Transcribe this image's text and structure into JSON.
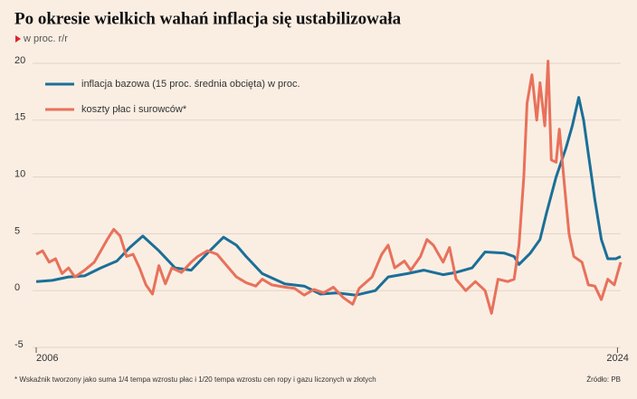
{
  "chart_data": {
    "type": "line",
    "title": "Po okresie wielkich wahań inflacja się ustabilizowała",
    "subtitle": "w proc. r/r",
    "footnote": "* Wskaźnik tworzony jako suma 1/4 tempa wzrostu płac i 1/20 tempa wzrostu cen ropy i gazu liczonych w złotych",
    "source": "Źródło: PB",
    "xlim": [
      2006,
      2024.1
    ],
    "xticks": [
      2006,
      2024
    ],
    "ylim": [
      -5,
      20
    ],
    "yticks": [
      20,
      15,
      10,
      5,
      0,
      -5
    ],
    "grid": true,
    "legend": "upper left",
    "series": [
      {
        "name": "inflacja bazowa (15 proc. średnia obcięta) w proc.",
        "color": "#1b6f98",
        "x": [
          2006.0,
          2006.5,
          2007.0,
          2007.5,
          2008.0,
          2008.5,
          2008.9,
          2009.3,
          2009.8,
          2010.3,
          2010.8,
          2011.3,
          2011.8,
          2012.2,
          2012.5,
          2013.0,
          2013.7,
          2014.3,
          2014.8,
          2015.3,
          2015.9,
          2016.5,
          2016.9,
          2017.5,
          2018.0,
          2018.6,
          2019.0,
          2019.5,
          2019.9,
          2020.5,
          2020.8,
          2020.95,
          2021.3,
          2021.6,
          2021.8,
          2022.1,
          2022.4,
          2022.6,
          2022.8,
          2022.95,
          2023.1,
          2023.3,
          2023.5,
          2023.7,
          2023.95,
          2024.1
        ],
        "values": [
          0.8,
          0.9,
          1.2,
          1.3,
          2.0,
          2.6,
          3.8,
          4.8,
          3.5,
          2.0,
          1.8,
          3.3,
          4.7,
          4.0,
          3.0,
          1.5,
          0.6,
          0.4,
          -0.3,
          -0.2,
          -0.4,
          0.0,
          1.2,
          1.5,
          1.8,
          1.4,
          1.6,
          2.0,
          3.4,
          3.3,
          3.0,
          2.3,
          3.3,
          4.5,
          6.8,
          10.0,
          12.5,
          14.5,
          17.0,
          15.0,
          12.0,
          8.0,
          4.5,
          2.8,
          2.8,
          3.0
        ]
      },
      {
        "name": "koszty płac i surowców*",
        "color": "#e8715b",
        "x": [
          2006.0,
          2006.2,
          2006.4,
          2006.6,
          2006.8,
          2007.0,
          2007.2,
          2007.5,
          2007.8,
          2008.0,
          2008.2,
          2008.4,
          2008.6,
          2008.8,
          2009.0,
          2009.2,
          2009.4,
          2009.6,
          2009.8,
          2010.0,
          2010.2,
          2010.5,
          2010.8,
          2011.0,
          2011.3,
          2011.6,
          2011.9,
          2012.2,
          2012.5,
          2012.8,
          2013.0,
          2013.3,
          2013.7,
          2014.0,
          2014.3,
          2014.6,
          2014.9,
          2015.2,
          2015.5,
          2015.8,
          2016.0,
          2016.4,
          2016.7,
          2016.9,
          2017.1,
          2017.4,
          2017.6,
          2017.9,
          2018.1,
          2018.3,
          2018.6,
          2018.8,
          2019.0,
          2019.3,
          2019.6,
          2019.9,
          2020.1,
          2020.3,
          2020.6,
          2020.8,
          2020.95,
          2021.1,
          2021.2,
          2021.35,
          2021.5,
          2021.6,
          2021.75,
          2021.85,
          2021.95,
          2022.1,
          2022.2,
          2022.4,
          2022.5,
          2022.65,
          2022.9,
          2023.1,
          2023.3,
          2023.5,
          2023.7,
          2023.9,
          2024.0,
          2024.1
        ],
        "values": [
          3.2,
          3.5,
          2.5,
          2.8,
          1.5,
          2.0,
          1.2,
          1.8,
          2.5,
          3.5,
          4.5,
          5.4,
          4.8,
          3.0,
          3.2,
          2.0,
          0.5,
          -0.3,
          2.2,
          0.6,
          2.0,
          1.6,
          2.5,
          3.0,
          3.5,
          3.2,
          2.2,
          1.2,
          0.7,
          0.4,
          1.0,
          0.5,
          0.3,
          0.2,
          -0.4,
          0.1,
          -0.2,
          0.3,
          -0.6,
          -1.2,
          0.2,
          1.2,
          3.2,
          4.0,
          2.0,
          2.6,
          1.8,
          3.0,
          4.5,
          4.0,
          2.5,
          3.8,
          1.0,
          0.0,
          0.8,
          0.0,
          -2.0,
          1.0,
          0.8,
          1.0,
          4.0,
          10.0,
          16.5,
          19.0,
          15.0,
          18.3,
          14.5,
          20.2,
          11.5,
          11.3,
          14.2,
          8.0,
          5.0,
          3.0,
          2.5,
          0.5,
          0.4,
          -0.8,
          1.0,
          0.5,
          1.5,
          2.5
        ]
      }
    ]
  }
}
